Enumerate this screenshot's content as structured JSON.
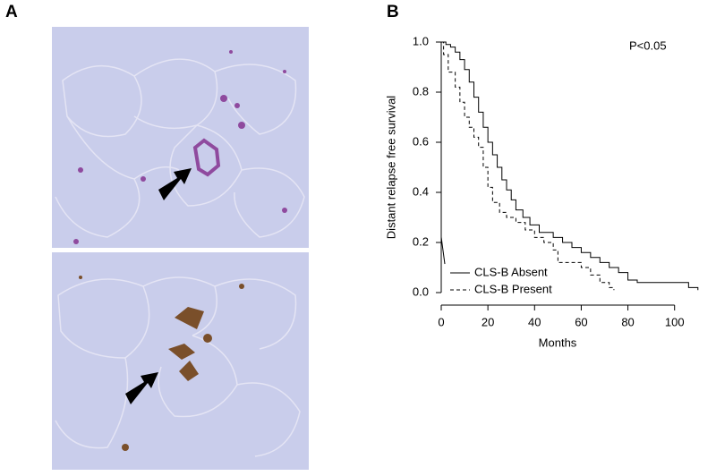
{
  "figure": {
    "panel_labels": [
      "A",
      "B"
    ]
  },
  "chart_data": {
    "type": "step",
    "xlabel": "Months",
    "ylabel": "Distant relapse free survival",
    "annotation": "P<0.05",
    "xlim": [
      0,
      112
    ],
    "ylim": [
      0,
      1
    ],
    "xticks": [
      0,
      20,
      40,
      60,
      80,
      100
    ],
    "yticks": [
      {
        "value": 0,
        "label": "0.0"
      },
      0.2,
      0.4,
      0.6,
      0.8,
      {
        "value": 1,
        "label": "1.0"
      }
    ],
    "legend": "bottom-left",
    "series": [
      {
        "name": "CLS-B Absent",
        "color": "#000000",
        "line_style": "solid",
        "x": [
          0,
          2,
          4,
          6,
          8,
          10,
          12,
          14,
          16,
          18,
          20,
          22,
          24,
          26,
          28,
          30,
          32,
          35,
          38,
          42,
          48,
          52,
          56,
          60,
          64,
          68,
          72,
          76,
          80,
          84,
          100,
          106,
          110
        ],
        "values": [
          1.0,
          0.99,
          0.98,
          0.96,
          0.93,
          0.89,
          0.84,
          0.78,
          0.72,
          0.66,
          0.6,
          0.55,
          0.5,
          0.45,
          0.41,
          0.37,
          0.33,
          0.3,
          0.27,
          0.24,
          0.22,
          0.2,
          0.18,
          0.16,
          0.14,
          0.12,
          0.1,
          0.08,
          0.05,
          0.04,
          0.04,
          0.02,
          0.01
        ]
      },
      {
        "name": "CLS-B Present",
        "color": "#000000",
        "line_style": "dashed",
        "x": [
          0,
          1,
          3,
          6,
          8,
          10,
          12,
          14,
          16,
          18,
          20,
          22,
          25,
          28,
          32,
          36,
          40,
          44,
          48,
          50,
          56,
          60,
          64,
          68,
          72,
          74
        ],
        "values": [
          1.0,
          0.95,
          0.88,
          0.82,
          0.76,
          0.7,
          0.66,
          0.62,
          0.58,
          0.5,
          0.42,
          0.36,
          0.32,
          0.3,
          0.28,
          0.25,
          0.22,
          0.2,
          0.17,
          0.12,
          0.12,
          0.1,
          0.07,
          0.04,
          0.02,
          0.01
        ]
      }
    ]
  }
}
